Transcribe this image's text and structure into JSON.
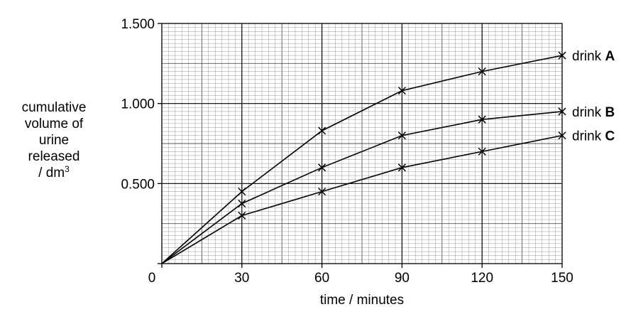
{
  "chart_data": {
    "type": "line",
    "xlabel": "time / minutes",
    "ylabel": {
      "line1": "cumulative",
      "line2": "volume of",
      "line3": "urine",
      "line4": "released",
      "line5_prefix": "/ dm",
      "line5_sup": "3"
    },
    "x": [
      0,
      30,
      60,
      90,
      120,
      150
    ],
    "xticks": [
      "0",
      "30",
      "60",
      "90",
      "120",
      "150"
    ],
    "yticks": [
      {
        "value": 0.5,
        "label": "0.500"
      },
      {
        "value": 1.0,
        "label": "1.000"
      },
      {
        "value": 1.5,
        "label": "1.500"
      }
    ],
    "xlim": [
      0,
      150
    ],
    "ylim": [
      0,
      1.5
    ],
    "grid": true,
    "series": [
      {
        "name": "drink A",
        "prefix": "drink",
        "letter": "A",
        "values": [
          0,
          0.45,
          0.83,
          1.08,
          1.2,
          1.3
        ]
      },
      {
        "name": "drink B",
        "prefix": "drink",
        "letter": "B",
        "values": [
          0,
          0.375,
          0.6,
          0.8,
          0.9,
          0.95
        ]
      },
      {
        "name": "drink C",
        "prefix": "drink",
        "letter": "C",
        "values": [
          0,
          0.3,
          0.45,
          0.6,
          0.7,
          0.8
        ]
      }
    ]
  }
}
